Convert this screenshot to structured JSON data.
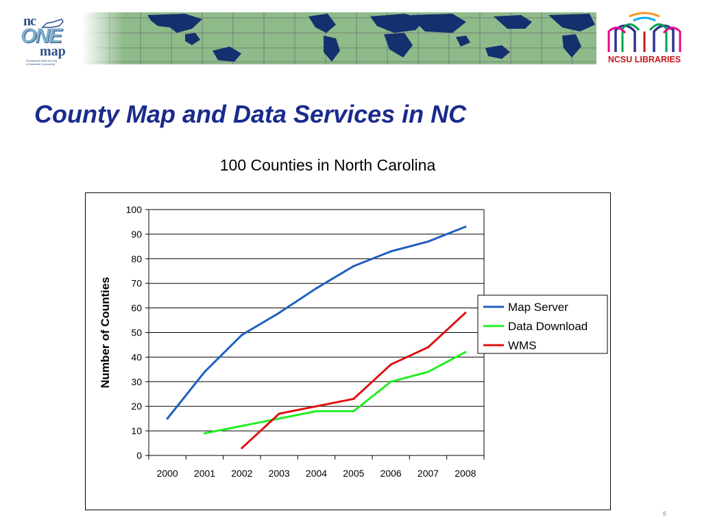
{
  "header": {
    "nc_logo": {
      "line1": "nc",
      "line2": "ONE",
      "line3": "map",
      "tagline1": "Geographic Data Serving",
      "tagline2": "A Statewide Community"
    },
    "ncsu_logo": {
      "label": "NCSU LIBRARIES"
    }
  },
  "slide": {
    "title": "County Map and Data Services in NC",
    "page_number": "6"
  },
  "chart_data": {
    "type": "line",
    "title": "100 Counties in North Carolina",
    "xlabel": "",
    "ylabel": "Number of Counties",
    "categories": [
      "2000",
      "2001",
      "2002",
      "2003",
      "2004",
      "2005",
      "2006",
      "2007",
      "2008"
    ],
    "ylim": [
      0,
      100
    ],
    "yticks": [
      "0",
      "10",
      "20",
      "30",
      "40",
      "50",
      "60",
      "70",
      "80",
      "90",
      "100"
    ],
    "grid": true,
    "legend_position": "right",
    "series": [
      {
        "name": "Map Server",
        "color": "#1f5fbf",
        "values": [
          15,
          34,
          49,
          58,
          68,
          77,
          83,
          87,
          93
        ]
      },
      {
        "name": "Data Download",
        "color": "#22ee22",
        "values": [
          null,
          9,
          12,
          15,
          18,
          18,
          30,
          34,
          42
        ]
      },
      {
        "name": "WMS",
        "color": "#e01010",
        "values": [
          null,
          null,
          3,
          17,
          20,
          23,
          37,
          44,
          58
        ]
      }
    ]
  }
}
